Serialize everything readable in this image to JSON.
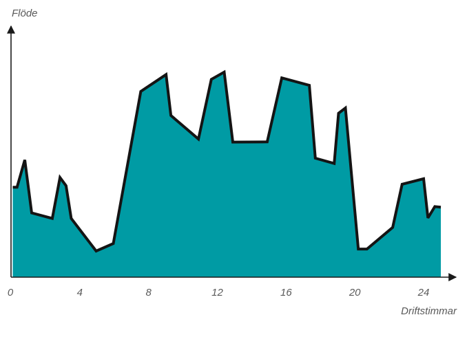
{
  "chart_data": {
    "type": "area",
    "title": "",
    "ylabel": "Flöde",
    "xlabel": "Driftstimmar",
    "x_ticks": [
      0,
      4,
      8,
      12,
      16,
      20,
      24
    ],
    "xlim": [
      0,
      25
    ],
    "ylim": [
      0,
      100
    ],
    "grid": false,
    "fill_color": "#009ba4",
    "line_color": "#141414",
    "axis_color": "#1a1a1a",
    "series": [
      {
        "x": [
          0.1,
          0.35,
          0.8,
          1.2,
          2.4,
          2.85,
          3.2,
          3.5,
          4.95,
          5.95,
          7.55,
          9.02,
          9.3,
          10.9,
          11.65,
          12.4,
          12.9,
          14.9,
          15.75,
          17.35,
          17.7,
          18.8,
          19.05,
          19.45,
          20.2,
          20.7,
          22.2,
          22.75,
          24.0,
          24.25,
          24.65,
          25.0
        ],
        "y": [
          35.8,
          35.8,
          46.7,
          25.6,
          23.4,
          39.7,
          36.4,
          23.4,
          10.4,
          13.4,
          74.0,
          80.7,
          64.4,
          55.0,
          78.8,
          81.7,
          53.8,
          53.9,
          79.4,
          76.4,
          47.4,
          45.3,
          65.3,
          67.4,
          11.2,
          11.2,
          19.8,
          37.0,
          39.2,
          23.6,
          28.1,
          27.9
        ]
      }
    ]
  }
}
